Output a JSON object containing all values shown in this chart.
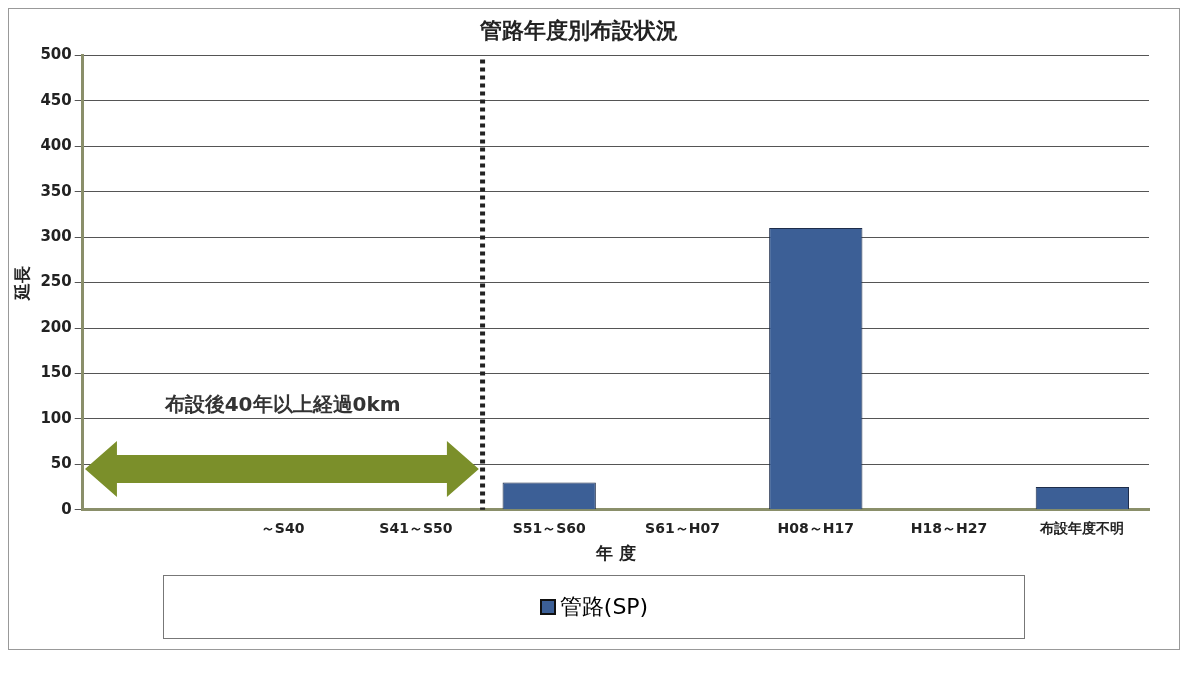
{
  "chart_data": {
    "type": "bar",
    "title": "管路年度別布設状況",
    "xlabel": "年 度",
    "ylabel": "延長",
    "categories": [
      null,
      "～S40",
      "S41～S50",
      "S51～S60",
      "S61～H07",
      "H08～H17",
      "H18～H27",
      "布設年度不明"
    ],
    "series": [
      {
        "name": "管路(SP)",
        "color": "#3c5f96",
        "values": [
          0,
          0,
          0,
          30,
          0,
          310,
          0,
          25
        ]
      }
    ],
    "ylim": [
      0,
      500
    ],
    "yticks": [
      0,
      50,
      100,
      150,
      200,
      250,
      300,
      350,
      400,
      450,
      500
    ],
    "grid": "y",
    "legend": "bottom",
    "annotations": [
      "布設後40年以上経過0km"
    ],
    "ref_lines": [
      {
        "axis": "x",
        "value": "S41～S50",
        "line_style": "dotted",
        "color": "#222222"
      }
    ]
  }
}
